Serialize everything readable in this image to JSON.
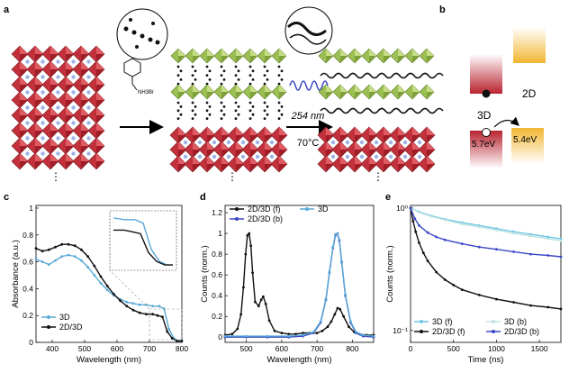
{
  "panels": {
    "a": "a",
    "b": "b",
    "c": "c",
    "d": "d",
    "e": "e"
  },
  "schematic_a": {
    "molecule_label": "NH3Br",
    "uv_label": "254 nm",
    "temp_label": "70°C",
    "ellipsis": "⋮"
  },
  "schematic_b": {
    "label_3d": "3D",
    "label_2d": "2D",
    "energy_3d": "5.7eV",
    "energy_2d": "5.4eV",
    "color_3d": "#c0392b",
    "color_2d": "#f2c14e"
  },
  "chart_data": [
    {
      "panel": "c",
      "type": "line",
      "xlabel": "Wavelength (nm)",
      "ylabel": "Absorbance (a.u.)",
      "xlim": [
        350,
        800
      ],
      "ylim": [
        0,
        1.02
      ],
      "xticks": [
        400,
        500,
        600,
        700,
        800
      ],
      "yticks": [
        0,
        0.2,
        0.4,
        0.6,
        0.8,
        1
      ],
      "ytick_labels": [
        "0",
        "0.2",
        "0.4",
        "0.6",
        "0.8",
        "1"
      ],
      "legend": "bottom-left",
      "inset": true,
      "series": [
        {
          "name": "3D",
          "color": "#5aa9d6",
          "x": [
            350,
            370,
            390,
            410,
            430,
            450,
            470,
            490,
            510,
            530,
            550,
            570,
            590,
            610,
            630,
            650,
            670,
            690,
            710,
            730,
            745,
            760,
            775,
            790,
            800
          ],
          "y": [
            0.62,
            0.6,
            0.58,
            0.61,
            0.64,
            0.65,
            0.64,
            0.61,
            0.56,
            0.5,
            0.44,
            0.39,
            0.35,
            0.32,
            0.3,
            0.29,
            0.28,
            0.28,
            0.27,
            0.27,
            0.25,
            0.1,
            0.03,
            0.01,
            0.01
          ]
        },
        {
          "name": "2D/3D",
          "color": "#111111",
          "x": [
            350,
            370,
            390,
            410,
            430,
            450,
            470,
            490,
            510,
            530,
            550,
            570,
            590,
            610,
            630,
            650,
            670,
            690,
            710,
            725,
            740,
            755,
            770,
            785,
            800
          ],
          "y": [
            0.7,
            0.68,
            0.69,
            0.71,
            0.73,
            0.73,
            0.72,
            0.69,
            0.64,
            0.57,
            0.49,
            0.42,
            0.36,
            0.31,
            0.27,
            0.24,
            0.22,
            0.21,
            0.21,
            0.2,
            0.19,
            0.08,
            0.03,
            0.01,
            0.01
          ]
        }
      ]
    },
    {
      "panel": "d",
      "type": "line",
      "xlabel": "Wavelength (nm)",
      "ylabel": "Counts (norm.)",
      "xlim": [
        440,
        860
      ],
      "ylim": [
        -0.05,
        1.27
      ],
      "xticks": [
        500,
        600,
        700,
        800
      ],
      "yticks": [
        0,
        0.2,
        0.4,
        0.6,
        0.8,
        1,
        1.2
      ],
      "ytick_labels": [
        "0",
        "0.2",
        "0.4",
        "0.6",
        "0.8",
        "1",
        "1.2"
      ],
      "legend": "top",
      "series": [
        {
          "name": "2D/3D (f)",
          "color": "#111111",
          "x": [
            440,
            460,
            475,
            485,
            492,
            498,
            503,
            508,
            513,
            518,
            525,
            535,
            542,
            548,
            555,
            565,
            580,
            600,
            620,
            640,
            660,
            680,
            700,
            715,
            730,
            740,
            750,
            758,
            765,
            775,
            790,
            805,
            820,
            840,
            860
          ],
          "y": [
            0.02,
            0.03,
            0.08,
            0.22,
            0.48,
            0.8,
            0.98,
            1.0,
            0.88,
            0.62,
            0.34,
            0.3,
            0.36,
            0.39,
            0.32,
            0.16,
            0.06,
            0.04,
            0.03,
            0.03,
            0.04,
            0.04,
            0.04,
            0.06,
            0.1,
            0.15,
            0.22,
            0.28,
            0.27,
            0.2,
            0.1,
            0.05,
            0.03,
            0.02,
            0.02
          ]
        },
        {
          "name": "2D/3D (b)",
          "color": "#3a47c5",
          "x": [
            440,
            500,
            560,
            620,
            660,
            690,
            710,
            725,
            735,
            745,
            752,
            758,
            763,
            770,
            780,
            795,
            810,
            830,
            860
          ],
          "y": [
            0.0,
            0.0,
            0.0,
            0.0,
            0.01,
            0.04,
            0.14,
            0.36,
            0.62,
            0.86,
            0.98,
            1.0,
            0.93,
            0.72,
            0.4,
            0.14,
            0.04,
            0.01,
            0.0
          ]
        },
        {
          "name": "3D",
          "color": "#5aa9d6",
          "x": [
            440,
            500,
            560,
            620,
            660,
            690,
            710,
            725,
            735,
            745,
            752,
            758,
            763,
            770,
            780,
            795,
            810,
            830,
            860
          ],
          "y": [
            0.01,
            0.01,
            0.01,
            0.01,
            0.02,
            0.05,
            0.15,
            0.37,
            0.63,
            0.87,
            0.99,
            1.0,
            0.94,
            0.73,
            0.41,
            0.15,
            0.05,
            0.02,
            0.01
          ]
        }
      ]
    },
    {
      "panel": "e",
      "type": "line",
      "xlabel": "Time (ns)",
      "ylabel": "Counts (norm.)",
      "xlim": [
        0,
        1750
      ],
      "ylim": [
        0.08,
        1.05
      ],
      "yscale": "log",
      "xticks": [
        0,
        500,
        1000,
        1500
      ],
      "yticks": [
        0.1,
        1
      ],
      "ytick_labels": [
        "10⁻¹",
        "10⁰"
      ],
      "legend": "bottom",
      "series": [
        {
          "name": "3D (f)",
          "color": "#6ec6e6",
          "x": [
            0,
            100,
            250,
            400,
            600,
            800,
            1000,
            1200,
            1400,
            1600,
            1750
          ],
          "y": [
            1.0,
            0.93,
            0.86,
            0.81,
            0.76,
            0.72,
            0.68,
            0.64,
            0.61,
            0.58,
            0.56
          ]
        },
        {
          "name": "3D (b)",
          "color": "#bfe3e0",
          "x": [
            0,
            100,
            250,
            400,
            600,
            800,
            1000,
            1200,
            1400,
            1600,
            1750
          ],
          "y": [
            1.0,
            0.92,
            0.85,
            0.8,
            0.74,
            0.7,
            0.66,
            0.62,
            0.59,
            0.56,
            0.54
          ]
        },
        {
          "name": "2D/3D (f)",
          "color": "#111111",
          "x": [
            0,
            30,
            60,
            100,
            150,
            200,
            300,
            400,
            500,
            600,
            800,
            1000,
            1200,
            1400,
            1600,
            1750
          ],
          "y": [
            1.0,
            0.78,
            0.64,
            0.52,
            0.43,
            0.37,
            0.3,
            0.26,
            0.235,
            0.215,
            0.195,
            0.18,
            0.17,
            0.16,
            0.155,
            0.15
          ]
        },
        {
          "name": "2D/3D (b)",
          "color": "#3a47c5",
          "x": [
            0,
            50,
            100,
            200,
            300,
            400,
            600,
            800,
            1000,
            1200,
            1400,
            1600,
            1750
          ],
          "y": [
            1.0,
            0.82,
            0.72,
            0.63,
            0.58,
            0.55,
            0.51,
            0.48,
            0.46,
            0.44,
            0.42,
            0.41,
            0.4
          ]
        }
      ]
    }
  ]
}
